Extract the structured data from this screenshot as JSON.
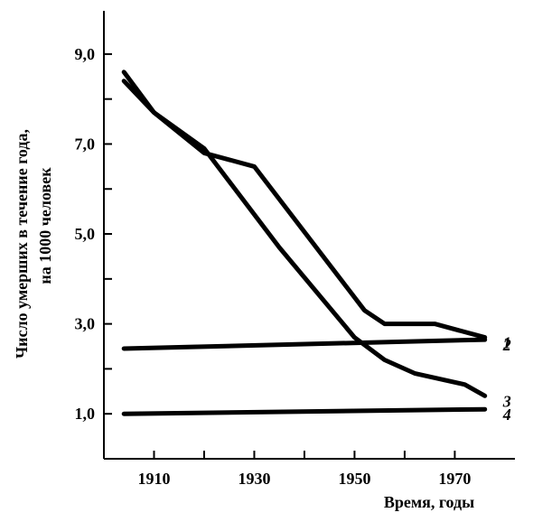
{
  "chart_data": {
    "type": "line",
    "xlabel": "Время, годы",
    "ylabel_line1": "Число умерших в течение года,",
    "ylabel_line2": "на 1000 человек",
    "xlim": [
      1900,
      1982
    ],
    "ylim": [
      0,
      9.6
    ],
    "x_ticks": [
      1910,
      1930,
      1950,
      1970
    ],
    "x_minor_ticks": [
      1920,
      1940,
      1960
    ],
    "y_ticks": [
      {
        "value": 1.0,
        "label": "1,0"
      },
      {
        "value": 3.0,
        "label": "3,0"
      },
      {
        "value": 5.0,
        "label": "5,0"
      },
      {
        "value": 7.0,
        "label": "7,0"
      },
      {
        "value": 9.0,
        "label": "9,0"
      }
    ],
    "y_minor_ticks": [
      2.0,
      4.0,
      6.0,
      8.0
    ],
    "grid": false,
    "series": [
      {
        "name": "1",
        "x": [
          1904,
          1910,
          1920,
          1930,
          1952,
          1956,
          1966,
          1976
        ],
        "y": [
          8.6,
          7.7,
          6.8,
          6.5,
          3.3,
          3.0,
          3.0,
          2.7
        ]
      },
      {
        "name": "2",
        "x": [
          1904,
          1976
        ],
        "y": [
          2.45,
          2.65
        ]
      },
      {
        "name": "3",
        "x": [
          1904,
          1910,
          1920,
          1935,
          1950,
          1956,
          1962,
          1972,
          1976
        ],
        "y": [
          8.4,
          7.7,
          6.9,
          4.7,
          2.7,
          2.2,
          1.9,
          1.65,
          1.4
        ]
      },
      {
        "name": "4",
        "x": [
          1904,
          1976
        ],
        "y": [
          1.0,
          1.1
        ]
      }
    ]
  }
}
